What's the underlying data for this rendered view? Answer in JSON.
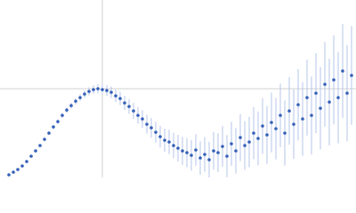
{
  "chart_data": {
    "type": "scatter",
    "color": "#3560b8",
    "error_color": "#b4c5e8",
    "grid": true,
    "xlim": [
      0,
      400
    ],
    "ylim": [
      0,
      200
    ],
    "xticks": [
      115
    ],
    "yticks": [
      100
    ],
    "x": [
      10,
      15,
      20,
      25,
      30,
      35,
      40,
      45,
      50,
      55,
      60,
      65,
      70,
      75,
      80,
      85,
      90,
      95,
      100,
      105,
      110,
      115,
      120,
      125,
      130,
      135,
      140,
      145,
      150,
      155,
      160,
      165,
      170,
      175,
      180,
      185,
      190,
      195,
      200,
      205,
      210,
      215,
      220,
      225,
      230,
      235,
      240,
      245,
      250,
      255,
      260,
      265,
      270,
      275,
      280,
      285,
      290,
      295,
      300,
      305,
      310,
      315,
      320,
      325,
      330,
      335,
      340,
      345,
      350,
      355,
      360,
      365,
      370,
      375,
      380,
      385,
      390,
      395
    ],
    "values": [
      3,
      6,
      9,
      13,
      18,
      24,
      30,
      36,
      43,
      50,
      57,
      63,
      70,
      76,
      81,
      86,
      90,
      94,
      97,
      99,
      100,
      99,
      98,
      96,
      92,
      89,
      84,
      80,
      75,
      70,
      66,
      60,
      56,
      51,
      46,
      42,
      40,
      36,
      33,
      30,
      28,
      25,
      31,
      22,
      26,
      20,
      30,
      28,
      35,
      24,
      38,
      30,
      45,
      36,
      40,
      50,
      44,
      58,
      48,
      62,
      55,
      70,
      50,
      75,
      60,
      82,
      66,
      90,
      70,
      95,
      78,
      105,
      85,
      110,
      90,
      120,
      95,
      115
    ],
    "errors": [
      1,
      1.1,
      1.1,
      1.2,
      1.3,
      1.4,
      1.6,
      1.7,
      1.9,
      2.1,
      2.3,
      2.5,
      2.7,
      3,
      3.2,
      3.5,
      3.8,
      4.2,
      4.5,
      4.9,
      5.2,
      5.6,
      6,
      6.5,
      6.9,
      7.4,
      7.9,
      8.4,
      8.9,
      9.4,
      10,
      10.5,
      11.1,
      11.7,
      12.3,
      13,
      13.6,
      14.3,
      15,
      15.7,
      16.4,
      17.2,
      17.9,
      18.7,
      19.5,
      20.3,
      21.2,
      22,
      22.9,
      23.8,
      24.7,
      25.6,
      26.5,
      27.5,
      28.4,
      29.4,
      30.4,
      31.5,
      32.5,
      33.6,
      34.6,
      35.7,
      36.8,
      38,
      39.1,
      40.3,
      41.5,
      42.7,
      43.9,
      45.1,
      46.4,
      47.6,
      48.9,
      50.2,
      51.5,
      52.9,
      54.2,
      55.6
    ]
  }
}
